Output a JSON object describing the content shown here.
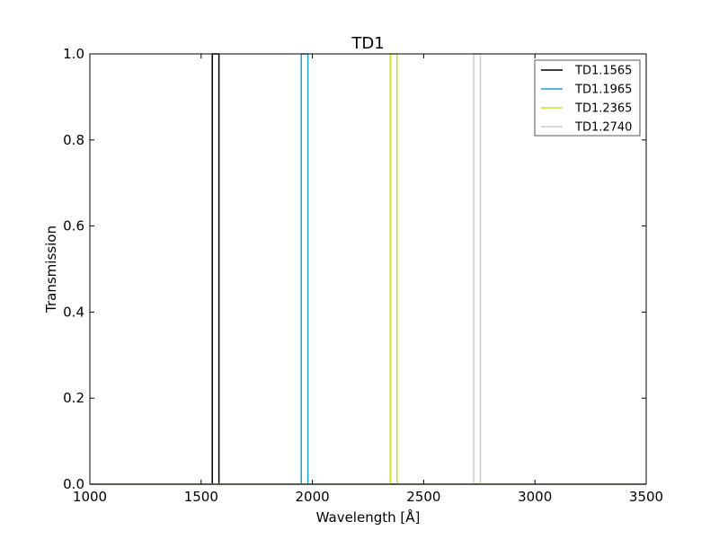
{
  "chart_data": {
    "type": "line",
    "title": "TD1",
    "xlabel": "Wavelength [Å]",
    "ylabel": "Transmission",
    "xlim": [
      1000,
      3500
    ],
    "ylim": [
      0.0,
      1.0
    ],
    "xticks": [
      1000,
      1500,
      2000,
      2500,
      3000,
      3500
    ],
    "xtick_labels": [
      "1000",
      "1500",
      "2000",
      "2500",
      "3000",
      "3500"
    ],
    "yticks": [
      0.0,
      0.2,
      0.4,
      0.6,
      0.8,
      1.0
    ],
    "ytick_labels": [
      "0.0",
      "0.2",
      "0.4",
      "0.6",
      "0.8",
      "1.0"
    ],
    "grid": false,
    "legend_position": "top-right",
    "series": [
      {
        "name": "TD1.1565",
        "color": "#000000",
        "x": [
          1000,
          1550,
          1550,
          1580,
          1580,
          3500
        ],
        "y": [
          0,
          0,
          1,
          1,
          0,
          0
        ]
      },
      {
        "name": "TD1.1965",
        "color": "#1f9fd6",
        "x": [
          1000,
          1950,
          1950,
          1980,
          1980,
          3500
        ],
        "y": [
          0,
          0,
          1,
          1,
          0,
          0
        ]
      },
      {
        "name": "TD1.2365",
        "color": "#c8e020",
        "x": [
          1000,
          2350,
          2350,
          2380,
          2380,
          3500
        ],
        "y": [
          0,
          0,
          1,
          1,
          0,
          0
        ]
      },
      {
        "name": "TD1.2740",
        "color": "#cccccc",
        "x": [
          1000,
          2725,
          2725,
          2755,
          2755,
          3500
        ],
        "y": [
          0,
          0,
          1,
          1,
          0,
          0
        ]
      }
    ]
  }
}
